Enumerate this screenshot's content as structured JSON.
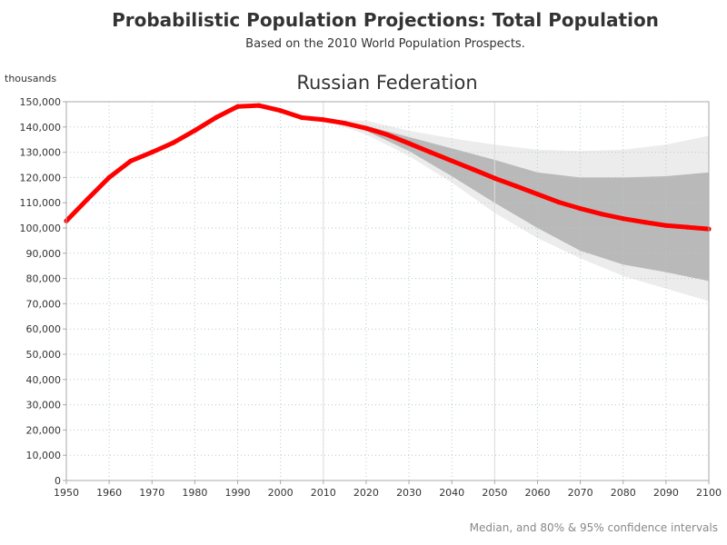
{
  "header": {
    "title": "Probabilistic Population Projections: Total Population",
    "subtitle": "Based on the 2010 World Population Prospects."
  },
  "footer": {
    "note": "Median, and 80% & 95% confidence intervals"
  },
  "colors": {
    "median": "#ff0000",
    "band80": "#b9b9b9",
    "band95": "#ececec",
    "grid": "#b7c9c9",
    "axis": "#aaaaaa",
    "marker_lines": "#dddddd"
  },
  "chart_data": {
    "type": "line",
    "title": "Russian Federation",
    "ylabel": "thousands",
    "xlabel": "",
    "xlim": [
      1950,
      2100
    ],
    "ylim": [
      0,
      150000
    ],
    "x_ticks": [
      1950,
      1960,
      1970,
      1980,
      1990,
      2000,
      2010,
      2020,
      2030,
      2040,
      2050,
      2060,
      2070,
      2080,
      2090,
      2100
    ],
    "y_ticks": [
      "0",
      "10,000",
      "20,000",
      "30,000",
      "40,000",
      "50,000",
      "60,000",
      "70,000",
      "80,000",
      "90,000",
      "100,000",
      "110,000",
      "120,000",
      "130,000",
      "140,000",
      "150,000"
    ],
    "y_tick_values": [
      0,
      10000,
      20000,
      30000,
      40000,
      50000,
      60000,
      70000,
      80000,
      90000,
      100000,
      110000,
      120000,
      130000,
      140000,
      150000
    ],
    "grid": true,
    "marker_years": [
      2010,
      2050
    ],
    "median": {
      "x": [
        1950,
        1955,
        1960,
        1965,
        1970,
        1975,
        1980,
        1985,
        1990,
        1995,
        2000,
        2005,
        2010,
        2015,
        2020,
        2025,
        2030,
        2035,
        2040,
        2045,
        2050,
        2055,
        2060,
        2065,
        2070,
        2075,
        2080,
        2085,
        2090,
        2095,
        2100
      ],
      "y": [
        102800,
        111500,
        120000,
        126500,
        130000,
        133800,
        138600,
        143800,
        148100,
        148500,
        146500,
        143700,
        142900,
        141500,
        139500,
        136900,
        133500,
        130000,
        126600,
        123200,
        119700,
        116600,
        113400,
        110200,
        107700,
        105500,
        103700,
        102300,
        101000,
        100300,
        99600
      ]
    },
    "band80": {
      "x": [
        2010,
        2020,
        2030,
        2040,
        2050,
        2060,
        2070,
        2080,
        2090,
        2100
      ],
      "lower": [
        142900,
        138500,
        130500,
        120500,
        110000,
        100000,
        91000,
        85500,
        82500,
        79000
      ],
      "upper": [
        142900,
        140500,
        136000,
        131500,
        127000,
        122000,
        120000,
        120000,
        120500,
        122000
      ]
    },
    "band95": {
      "x": [
        2010,
        2020,
        2030,
        2040,
        2050,
        2060,
        2070,
        2080,
        2090,
        2100
      ],
      "lower": [
        142900,
        137000,
        128500,
        118000,
        106000,
        96000,
        88000,
        81000,
        76000,
        71000
      ],
      "upper": [
        142900,
        142500,
        138500,
        135500,
        133000,
        131000,
        130500,
        131000,
        133000,
        136500
      ]
    }
  }
}
